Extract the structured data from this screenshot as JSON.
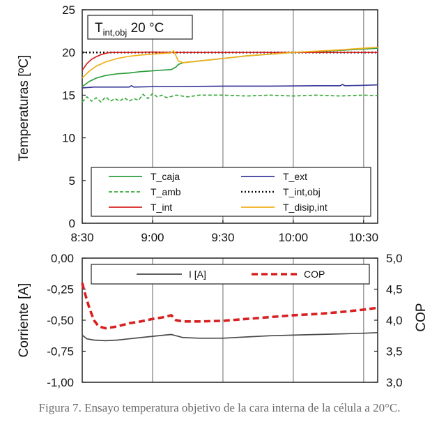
{
  "caption": "Figura 7. Ensayo temperatura objetivo de la cara interna de la célula a 20°C.",
  "chart_data": [
    {
      "type": "line",
      "ylabel": "Temperaturas [ºC]",
      "annotation": {
        "base": "T",
        "sub": "int,obj",
        "rest": " 20 °C"
      },
      "x_ticks": [
        "8:30",
        "9:00",
        "9:30",
        "10:00",
        "10:30"
      ],
      "x_tick_minutes": [
        0,
        30,
        60,
        90,
        120
      ],
      "xlim": [
        0,
        126
      ],
      "ylim": [
        0,
        25
      ],
      "y_ticks": [
        0,
        5,
        10,
        15,
        20,
        25
      ],
      "grid": "vertical",
      "legend_position": "lower-center",
      "series": [
        {
          "name": "T_caja",
          "color": "#2e9e3e",
          "dash": "solid",
          "x": [
            0,
            3,
            6,
            10,
            15,
            20,
            25,
            30,
            35,
            38,
            40,
            41,
            43,
            50,
            60,
            70,
            80,
            90,
            100,
            110,
            120,
            126
          ],
          "y": [
            16.0,
            16.6,
            17.0,
            17.3,
            17.5,
            17.6,
            17.75,
            17.85,
            17.95,
            18.0,
            18.3,
            18.6,
            18.8,
            19.0,
            19.3,
            19.6,
            19.8,
            20.0,
            20.1,
            20.25,
            20.4,
            20.5
          ]
        },
        {
          "name": "T_ext",
          "color": "#3a3a9a",
          "dash": "solid",
          "x": [
            0,
            5,
            15,
            20,
            21,
            22,
            30,
            40,
            60,
            80,
            100,
            110,
            111,
            112,
            120,
            126
          ],
          "y": [
            15.85,
            15.95,
            15.95,
            15.95,
            16.1,
            15.95,
            16.0,
            16.0,
            16.05,
            16.05,
            16.1,
            16.1,
            16.25,
            16.1,
            16.15,
            16.2
          ]
        },
        {
          "name": "T_amb",
          "color": "#3aaa3a",
          "dash": "dashed",
          "x": [
            0,
            2,
            4,
            6,
            8,
            10,
            12,
            14,
            16,
            18,
            20,
            22,
            24,
            26,
            28,
            30,
            32,
            34,
            36,
            40,
            45,
            50,
            60,
            70,
            80,
            90,
            100,
            110,
            120,
            126
          ],
          "y": [
            14.2,
            14.8,
            14.3,
            14.7,
            14.2,
            14.8,
            14.3,
            14.6,
            14.3,
            14.7,
            14.3,
            14.6,
            14.4,
            15.1,
            14.6,
            15.2,
            14.8,
            15.0,
            14.7,
            15.0,
            14.8,
            15.0,
            15.0,
            14.9,
            15.0,
            14.9,
            15.0,
            14.9,
            15.0,
            14.95
          ]
        },
        {
          "name": "T_int,obj",
          "color": "#111111",
          "dash": "dotted",
          "x": [
            0,
            126
          ],
          "y": [
            20.0,
            20.0
          ]
        },
        {
          "name": "T_int",
          "color": "#d82020",
          "dash": "solid",
          "x": [
            0,
            2,
            4,
            6,
            8,
            10,
            12,
            15,
            20,
            30,
            40,
            60,
            80,
            100,
            126
          ],
          "y": [
            17.9,
            18.7,
            19.2,
            19.5,
            19.75,
            19.9,
            20.0,
            20.0,
            20.0,
            20.05,
            20.0,
            20.0,
            20.0,
            20.0,
            20.0
          ]
        },
        {
          "name": "T_disip,int",
          "color": "#f2b01a",
          "dash": "solid",
          "x": [
            0,
            3,
            6,
            10,
            15,
            20,
            25,
            30,
            35,
            38,
            39,
            40,
            41,
            43,
            50,
            60,
            70,
            80,
            90,
            100,
            110,
            120,
            126
          ],
          "y": [
            17.0,
            17.8,
            18.4,
            18.9,
            19.3,
            19.55,
            19.7,
            19.8,
            19.9,
            19.95,
            20.2,
            19.6,
            19.0,
            18.8,
            19.0,
            19.3,
            19.6,
            19.8,
            20.0,
            20.15,
            20.3,
            20.5,
            20.6
          ]
        }
      ]
    },
    {
      "type": "line",
      "ylabel_left": "Corriente [A]",
      "ylabel_right": "COP",
      "xlim": [
        0,
        126
      ],
      "grid": "vertical",
      "legend_position": "top",
      "ylim_left": [
        -1.0,
        0.0
      ],
      "y_ticks_left": [
        "0,00",
        "-0,25",
        "-0,50",
        "-0,75",
        "-1,00"
      ],
      "ylim_right": [
        3.0,
        5.0
      ],
      "y_ticks_right": [
        "5,0",
        "4,5",
        "4,0",
        "3,5",
        "3,0"
      ],
      "series": [
        {
          "name": "I [A]",
          "axis": "left",
          "color": "#4a4a4a",
          "dash": "solid",
          "x": [
            0,
            2,
            5,
            10,
            15,
            20,
            25,
            30,
            35,
            38,
            40,
            43,
            50,
            60,
            70,
            80,
            90,
            100,
            110,
            120,
            126
          ],
          "y": [
            -0.62,
            -0.65,
            -0.66,
            -0.665,
            -0.66,
            -0.65,
            -0.64,
            -0.63,
            -0.62,
            -0.615,
            -0.625,
            -0.64,
            -0.645,
            -0.645,
            -0.635,
            -0.625,
            -0.62,
            -0.615,
            -0.61,
            -0.605,
            -0.6
          ]
        },
        {
          "name": "COP",
          "axis": "right",
          "color": "#d82020",
          "dash": "dashed",
          "x": [
            0,
            1,
            3,
            5,
            7,
            10,
            15,
            20,
            25,
            30,
            35,
            38,
            40,
            43,
            50,
            60,
            70,
            80,
            90,
            100,
            110,
            120,
            126
          ],
          "y": [
            4.6,
            4.45,
            4.2,
            4.0,
            3.9,
            3.87,
            3.9,
            3.95,
            3.98,
            4.02,
            4.05,
            4.08,
            4.0,
            3.98,
            3.98,
            3.99,
            4.02,
            4.05,
            4.08,
            4.1,
            4.13,
            4.17,
            4.2
          ]
        }
      ]
    }
  ]
}
